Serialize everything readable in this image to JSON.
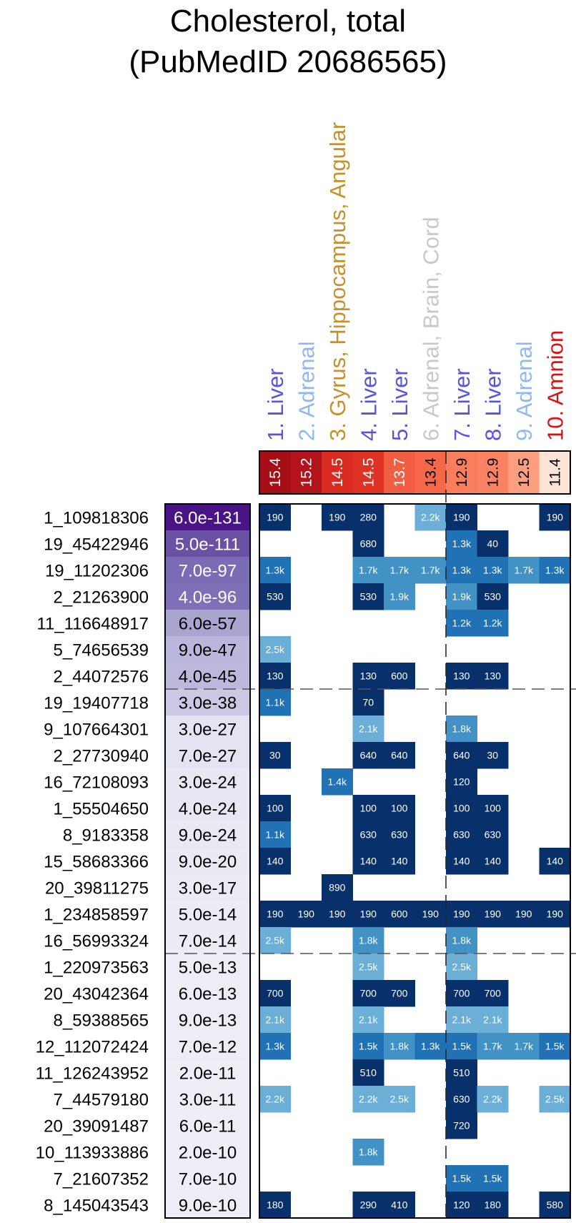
{
  "chart_data": {
    "type": "heatmap",
    "title": [
      "Cholesterol, total",
      "(PubMedID 20686565)"
    ],
    "columns": [
      {
        "label": "1. Liver",
        "color": "#5555dd",
        "score": "15.4",
        "shade": "#a50f15",
        "text_color": "#ffffff"
      },
      {
        "label": "2. Adrenal",
        "color": "#8fb8f0",
        "score": "15.2",
        "shade": "#b3131b",
        "text_color": "#ffffff"
      },
      {
        "label": "3. Gyrus, Hippocampus, Angular",
        "color": "#c8902a",
        "score": "14.5",
        "shade": "#d92a22",
        "text_color": "#ffffff"
      },
      {
        "label": "4. Liver",
        "color": "#5555dd",
        "score": "14.5",
        "shade": "#df3224",
        "text_color": "#ffffff"
      },
      {
        "label": "5. Liver",
        "color": "#5555dd",
        "score": "13.7",
        "shade": "#f25e42",
        "text_color": "#ffffff"
      },
      {
        "label": "6. Adrenal, Brain, Cord",
        "color": "#c8c8c8",
        "score": "13.4",
        "shade": "#f7684b",
        "text_color": "#000000"
      },
      {
        "label": "7. Liver",
        "color": "#5555dd",
        "score": "12.9",
        "shade": "#fb7e5c",
        "text_color": "#000000"
      },
      {
        "label": "8. Liver",
        "color": "#5555dd",
        "score": "12.9",
        "shade": "#fb8262",
        "text_color": "#000000"
      },
      {
        "label": "9. Adrenal",
        "color": "#8fb8f0",
        "score": "12.5",
        "shade": "#fc9e80",
        "text_color": "#000000"
      },
      {
        "label": "10. Amnion",
        "color": "#dd1111",
        "score": "11.4",
        "shade": "#fee3d6",
        "text_color": "#000000"
      }
    ],
    "rows": [
      {
        "label": "1_109818306",
        "pvalue": "6.0e-131",
        "shade": "#4a1486",
        "cells": [
          "190",
          "",
          "190",
          "280",
          "",
          "2.2k",
          "190",
          "",
          "",
          "190"
        ]
      },
      {
        "label": "19_45422946",
        "pvalue": "5.0e-111",
        "shade": "#6a51a3",
        "cells": [
          "",
          "",
          "",
          "680",
          "",
          "",
          "1.3k",
          "40",
          "",
          ""
        ]
      },
      {
        "label": "19_11202306",
        "pvalue": "7.0e-97",
        "shade": "#7b6bb4",
        "cells": [
          "1.3k",
          "",
          "",
          "1.7k",
          "1.7k",
          "1.7k",
          "1.3k",
          "1.3k",
          "1.7k",
          "1.3k"
        ]
      },
      {
        "label": "2_21263900",
        "pvalue": "4.0e-96",
        "shade": "#7e6fb6",
        "cells": [
          "530",
          "",
          "",
          "530",
          "1.9k",
          "",
          "1.9k",
          "530",
          "",
          ""
        ]
      },
      {
        "label": "11_116648917",
        "pvalue": "6.0e-57",
        "shade": "#a9a5cf",
        "cells": [
          "",
          "",
          "",
          "",
          "",
          "",
          "1.2k",
          "1.2k",
          "",
          ""
        ]
      },
      {
        "label": "5_74656539",
        "pvalue": "9.0e-47",
        "shade": "#bab7dc",
        "cells": [
          "2.5k",
          "",
          "",
          "",
          "",
          "",
          "",
          "",
          "",
          ""
        ]
      },
      {
        "label": "2_44072576",
        "pvalue": "4.0e-45",
        "shade": "#bcb9dd",
        "cells": [
          "130",
          "",
          "",
          "130",
          "600",
          "",
          "130",
          "130",
          "",
          ""
        ]
      },
      {
        "label": "19_19407718",
        "pvalue": "3.0e-38",
        "shade": "#cac8e3",
        "cells": [
          "1.1k",
          "",
          "",
          "70",
          "",
          "",
          "",
          "",
          "",
          ""
        ]
      },
      {
        "label": "9_107664301",
        "pvalue": "3.0e-27",
        "shade": "#e4e3f1",
        "cells": [
          "",
          "",
          "",
          "2.1k",
          "",
          "",
          "1.8k",
          "",
          "",
          ""
        ]
      },
      {
        "label": "2_27730940",
        "pvalue": "7.0e-27",
        "shade": "#e4e3f1",
        "cells": [
          "30",
          "",
          "",
          "640",
          "640",
          "",
          "640",
          "30",
          "",
          ""
        ]
      },
      {
        "label": "16_72108093",
        "pvalue": "3.0e-24",
        "shade": "#e8e7f3",
        "cells": [
          "",
          "",
          "1.4k",
          "",
          "",
          "",
          "120",
          "",
          "",
          ""
        ]
      },
      {
        "label": "1_55504650",
        "pvalue": "4.0e-24",
        "shade": "#e8e7f3",
        "cells": [
          "100",
          "",
          "",
          "100",
          "100",
          "",
          "100",
          "100",
          "",
          ""
        ]
      },
      {
        "label": "8_9183358",
        "pvalue": "9.0e-24",
        "shade": "#e9e8f3",
        "cells": [
          "1.1k",
          "",
          "",
          "630",
          "630",
          "",
          "630",
          "630",
          "",
          ""
        ]
      },
      {
        "label": "15_58683366",
        "pvalue": "9.0e-20",
        "shade": "#ebeaf4",
        "cells": [
          "140",
          "",
          "",
          "140",
          "140",
          "",
          "140",
          "140",
          "",
          "140"
        ]
      },
      {
        "label": "20_39811275",
        "pvalue": "3.0e-17",
        "shade": "#ecebf5",
        "cells": [
          "",
          "",
          "890",
          "",
          "",
          "",
          "",
          "",
          "",
          ""
        ]
      },
      {
        "label": "1_234858597",
        "pvalue": "5.0e-14",
        "shade": "#edecf5",
        "cells": [
          "190",
          "190",
          "190",
          "190",
          "600",
          "190",
          "190",
          "190",
          "190",
          "190"
        ]
      },
      {
        "label": "16_56993324",
        "pvalue": "7.0e-14",
        "shade": "#edecf5",
        "cells": [
          "2.5k",
          "",
          "",
          "1.8k",
          "",
          "",
          "1.8k",
          "",
          "",
          ""
        ]
      },
      {
        "label": "1_220973563",
        "pvalue": "5.0e-13",
        "shade": "#eeedf6",
        "cells": [
          "",
          "",
          "",
          "2.5k",
          "",
          "",
          "2.5k",
          "",
          "",
          ""
        ]
      },
      {
        "label": "20_43042364",
        "pvalue": "6.0e-13",
        "shade": "#eeedf6",
        "cells": [
          "700",
          "",
          "",
          "700",
          "700",
          "",
          "700",
          "700",
          "",
          ""
        ]
      },
      {
        "label": "8_59388565",
        "pvalue": "9.0e-13",
        "shade": "#eeedf6",
        "cells": [
          "2.1k",
          "",
          "",
          "2.1k",
          "",
          "",
          "2.1k",
          "2.1k",
          "",
          ""
        ]
      },
      {
        "label": "12_112072424",
        "pvalue": "7.0e-12",
        "shade": "#eeedf6",
        "cells": [
          "1.3k",
          "",
          "",
          "1.5k",
          "1.8k",
          "1.3k",
          "1.5k",
          "1.7k",
          "1.7k",
          "1.5k"
        ]
      },
      {
        "label": "11_126243952",
        "pvalue": "2.0e-11",
        "shade": "#efeef6",
        "cells": [
          "",
          "",
          "",
          "510",
          "",
          "",
          "510",
          "",
          "",
          ""
        ]
      },
      {
        "label": "7_44579180",
        "pvalue": "3.0e-11",
        "shade": "#efeef6",
        "cells": [
          "2.2k",
          "",
          "",
          "2.2k",
          "2.5k",
          "",
          "630",
          "2.2k",
          "",
          "2.5k"
        ]
      },
      {
        "label": "20_39091487",
        "pvalue": "6.0e-11",
        "shade": "#efeef6",
        "cells": [
          "",
          "",
          "",
          "",
          "",
          "",
          "720",
          "",
          "",
          ""
        ]
      },
      {
        "label": "10_113933886",
        "pvalue": "2.0e-10",
        "shade": "#efeef6",
        "cells": [
          "",
          "",
          "",
          "1.8k",
          "",
          "",
          "",
          "",
          "",
          ""
        ]
      },
      {
        "label": "7_21607352",
        "pvalue": "7.0e-10",
        "shade": "#efeef6",
        "cells": [
          "",
          "",
          "",
          "",
          "",
          "",
          "1.5k",
          "1.5k",
          "",
          ""
        ]
      },
      {
        "label": "8_145043543",
        "pvalue": "9.0e-10",
        "shade": "#efeef6",
        "cells": [
          "180",
          "",
          "",
          "290",
          "410",
          "",
          "120",
          "180",
          "",
          "580"
        ]
      }
    ],
    "row_separators_after": [
      6,
      16
    ],
    "column_separator_after": 5,
    "cell_color_scale": [
      {
        "max_kb": 1000,
        "color": "#08306b"
      },
      {
        "max_kb": 1600,
        "color": "#2171b5"
      },
      {
        "max_kb": 2000,
        "color": "#4292c6"
      },
      {
        "max_kb": 99999,
        "color": "#6baed6"
      }
    ]
  }
}
